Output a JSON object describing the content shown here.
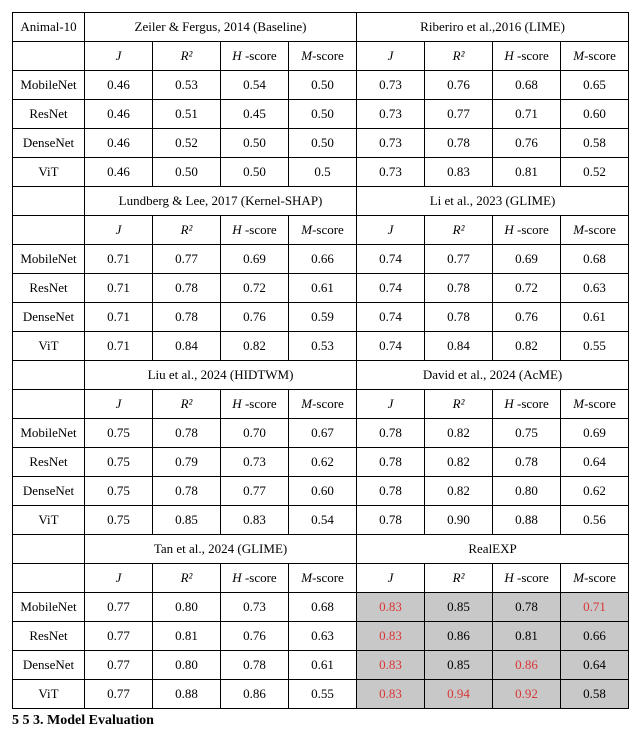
{
  "dataset_label": "Animal-10",
  "metrics": {
    "J": "J",
    "R2": "R²",
    "H": "H -score",
    "M": "M-score"
  },
  "models": [
    "MobileNet",
    "ResNet",
    "DenseNet",
    "ViT"
  ],
  "blocks": [
    {
      "left": {
        "title": "Zeiler & Fergus, 2014 (Baseline)",
        "rows": [
          [
            "0.46",
            "0.53",
            "0.54",
            "0.50"
          ],
          [
            "0.46",
            "0.51",
            "0.45",
            "0.50"
          ],
          [
            "0.46",
            "0.52",
            "0.50",
            "0.50"
          ],
          [
            "0.46",
            "0.50",
            "0.50",
            "0.5"
          ]
        ]
      },
      "right": {
        "title": "Riberiro et al.,2016 (LIME)",
        "rows": [
          [
            "0.73",
            "0.76",
            "0.68",
            "0.65"
          ],
          [
            "0.73",
            "0.77",
            "0.71",
            "0.60"
          ],
          [
            "0.73",
            "0.78",
            "0.76",
            "0.58"
          ],
          [
            "0.73",
            "0.83",
            "0.81",
            "0.52"
          ]
        ]
      }
    },
    {
      "left": {
        "title": "Lundberg & Lee, 2017 (Kernel-SHAP)",
        "rows": [
          [
            "0.71",
            "0.77",
            "0.69",
            "0.66"
          ],
          [
            "0.71",
            "0.78",
            "0.72",
            "0.61"
          ],
          [
            "0.71",
            "0.78",
            "0.76",
            "0.59"
          ],
          [
            "0.71",
            "0.84",
            "0.82",
            "0.53"
          ]
        ]
      },
      "right": {
        "title": "Li et al., 2023 (GLIME)",
        "rows": [
          [
            "0.74",
            "0.77",
            "0.69",
            "0.68"
          ],
          [
            "0.74",
            "0.78",
            "0.72",
            "0.63"
          ],
          [
            "0.74",
            "0.78",
            "0.76",
            "0.61"
          ],
          [
            "0.74",
            "0.84",
            "0.82",
            "0.55"
          ]
        ]
      }
    },
    {
      "left": {
        "title": "Liu et al., 2024 (HIDTWM)",
        "rows": [
          [
            "0.75",
            "0.78",
            "0.70",
            "0.67"
          ],
          [
            "0.75",
            "0.79",
            "0.73",
            "0.62"
          ],
          [
            "0.75",
            "0.78",
            "0.77",
            "0.60"
          ],
          [
            "0.75",
            "0.85",
            "0.83",
            "0.54"
          ]
        ]
      },
      "right": {
        "title": "David et al., 2024 (AcME)",
        "rows": [
          [
            "0.78",
            "0.82",
            "0.75",
            "0.69"
          ],
          [
            "0.78",
            "0.82",
            "0.78",
            "0.64"
          ],
          [
            "0.78",
            "0.82",
            "0.80",
            "0.62"
          ],
          [
            "0.78",
            "0.90",
            "0.88",
            "0.56"
          ]
        ]
      }
    },
    {
      "left": {
        "title": "Tan et al., 2024 (GLIME)",
        "rows": [
          [
            "0.77",
            "0.80",
            "0.73",
            "0.68"
          ],
          [
            "0.77",
            "0.81",
            "0.76",
            "0.63"
          ],
          [
            "0.77",
            "0.80",
            "0.78",
            "0.61"
          ],
          [
            "0.77",
            "0.88",
            "0.86",
            "0.55"
          ]
        ]
      },
      "right": {
        "title": "RealEXP",
        "highlight": true,
        "red_mask": [
          [
            1,
            0,
            0,
            1
          ],
          [
            1,
            0,
            0,
            0
          ],
          [
            1,
            0,
            1,
            0
          ],
          [
            1,
            1,
            1,
            0
          ]
        ],
        "rows": [
          [
            "0.83",
            "0.85",
            "0.78",
            "0.71"
          ],
          [
            "0.83",
            "0.86",
            "0.81",
            "0.66"
          ],
          [
            "0.83",
            "0.85",
            "0.86",
            "0.64"
          ],
          [
            "0.83",
            "0.94",
            "0.92",
            "0.58"
          ]
        ]
      }
    }
  ],
  "section_heading": "5 5 3. Model Evaluation",
  "style": {
    "highlight_bg": "#c8c8c8",
    "red_text": "#d93636",
    "border": "#000000"
  }
}
